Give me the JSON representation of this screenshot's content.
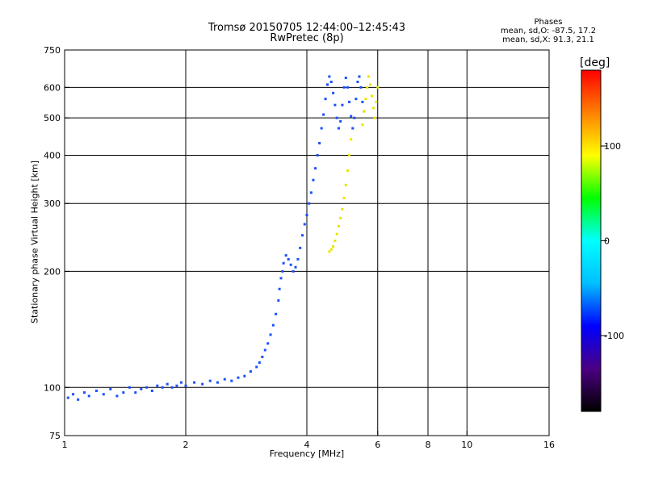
{
  "chart": {
    "title_line1": "Tromsø 20150705 12:44:00–12:45:43",
    "title_line2": "RwPretec (8p)",
    "stats_heading": "Phases",
    "stats_line1": "mean, sd,O:  -87.5,  17.2",
    "stats_line2": "mean, sd,X:   91.3,  21.1",
    "colorbar_unit": "[deg]"
  },
  "chart_data": {
    "type": "scatter",
    "title": "Tromsø 20150705 12:44:00–12:45:43",
    "subtitle": "RwPretec (8p)",
    "xlabel": "Frequency [MHz]",
    "ylabel": "Stationary phase Virtual Height [km]",
    "xscale": "log",
    "yscale": "log",
    "xlim": [
      1,
      16
    ],
    "ylim": [
      75,
      750
    ],
    "xticks": [
      1,
      2,
      4,
      6,
      8,
      10,
      16
    ],
    "yticks": [
      75,
      100,
      200,
      300,
      400,
      500,
      600,
      750
    ],
    "grid_x": [
      2,
      4,
      6,
      8,
      10
    ],
    "grid_y": [
      100,
      200,
      300,
      400,
      500,
      600
    ],
    "grid": true,
    "colorbar": {
      "label": "[deg]",
      "ticks": [
        100,
        0,
        -100
      ],
      "range": [
        -180,
        180
      ],
      "colormap": [
        "#000000",
        "#4b0082",
        "#0000ff",
        "#00bfff",
        "#00ffff",
        "#00ff00",
        "#ffff00",
        "#ff8000",
        "#ff0000"
      ]
    },
    "series": [
      {
        "name": "O",
        "description_ref": "O-mode trace, phase ≈ -87.5 deg",
        "color": "#1a4fff",
        "points": [
          [
            1.02,
            94
          ],
          [
            1.05,
            96
          ],
          [
            1.08,
            93
          ],
          [
            1.12,
            97
          ],
          [
            1.15,
            95
          ],
          [
            1.2,
            98
          ],
          [
            1.25,
            96
          ],
          [
            1.3,
            99
          ],
          [
            1.35,
            95
          ],
          [
            1.4,
            97
          ],
          [
            1.45,
            100
          ],
          [
            1.5,
            97
          ],
          [
            1.55,
            99
          ],
          [
            1.6,
            100
          ],
          [
            1.65,
            98
          ],
          [
            1.7,
            101
          ],
          [
            1.75,
            100
          ],
          [
            1.8,
            102
          ],
          [
            1.85,
            100
          ],
          [
            1.9,
            101
          ],
          [
            1.95,
            103
          ],
          [
            2.0,
            101
          ],
          [
            2.1,
            103
          ],
          [
            2.2,
            102
          ],
          [
            2.3,
            104
          ],
          [
            2.4,
            103
          ],
          [
            2.5,
            105
          ],
          [
            2.6,
            104
          ],
          [
            2.7,
            106
          ],
          [
            2.8,
            107
          ],
          [
            2.9,
            110
          ],
          [
            3.0,
            113
          ],
          [
            3.05,
            116
          ],
          [
            3.1,
            120
          ],
          [
            3.15,
            125
          ],
          [
            3.2,
            130
          ],
          [
            3.25,
            137
          ],
          [
            3.3,
            145
          ],
          [
            3.35,
            155
          ],
          [
            3.4,
            168
          ],
          [
            3.42,
            180
          ],
          [
            3.45,
            192
          ],
          [
            3.48,
            200
          ],
          [
            3.5,
            210
          ],
          [
            3.55,
            220
          ],
          [
            3.6,
            215
          ],
          [
            3.65,
            208
          ],
          [
            3.7,
            200
          ],
          [
            3.75,
            205
          ],
          [
            3.8,
            215
          ],
          [
            3.85,
            230
          ],
          [
            3.9,
            248
          ],
          [
            3.95,
            265
          ],
          [
            4.0,
            280
          ],
          [
            4.05,
            300
          ],
          [
            4.1,
            320
          ],
          [
            4.15,
            345
          ],
          [
            4.2,
            370
          ],
          [
            4.25,
            400
          ],
          [
            4.3,
            430
          ],
          [
            4.35,
            470
          ],
          [
            4.4,
            510
          ],
          [
            4.45,
            560
          ],
          [
            4.5,
            610
          ],
          [
            4.55,
            640
          ],
          [
            4.6,
            620
          ],
          [
            4.65,
            580
          ],
          [
            4.7,
            540
          ],
          [
            4.75,
            500
          ],
          [
            4.8,
            470
          ],
          [
            4.85,
            490
          ],
          [
            4.9,
            540
          ],
          [
            4.95,
            600
          ],
          [
            5.0,
            635
          ],
          [
            5.05,
            600
          ],
          [
            5.1,
            550
          ],
          [
            5.15,
            505
          ],
          [
            5.2,
            470
          ],
          [
            5.25,
            500
          ],
          [
            5.3,
            560
          ],
          [
            5.35,
            620
          ],
          [
            5.4,
            640
          ],
          [
            5.45,
            600
          ],
          [
            5.5,
            550
          ],
          [
            5.55,
            520
          ]
        ]
      },
      {
        "name": "X",
        "description_ref": "X-mode trace, phase ≈ 91.3 deg",
        "color": "#e6e600",
        "points": [
          [
            4.55,
            225
          ],
          [
            4.6,
            228
          ],
          [
            4.65,
            232
          ],
          [
            4.7,
            240
          ],
          [
            4.75,
            250
          ],
          [
            4.8,
            262
          ],
          [
            4.85,
            275
          ],
          [
            4.9,
            290
          ],
          [
            4.95,
            310
          ],
          [
            5.0,
            335
          ],
          [
            5.05,
            365
          ],
          [
            5.1,
            400
          ],
          [
            5.15,
            440
          ],
          [
            5.5,
            480
          ],
          [
            5.55,
            520
          ],
          [
            5.6,
            560
          ],
          [
            5.65,
            600
          ],
          [
            5.7,
            640
          ],
          [
            5.75,
            610
          ],
          [
            5.8,
            570
          ],
          [
            5.85,
            530
          ],
          [
            5.9,
            500
          ],
          [
            5.95,
            550
          ],
          [
            6.0,
            600
          ]
        ]
      }
    ]
  }
}
